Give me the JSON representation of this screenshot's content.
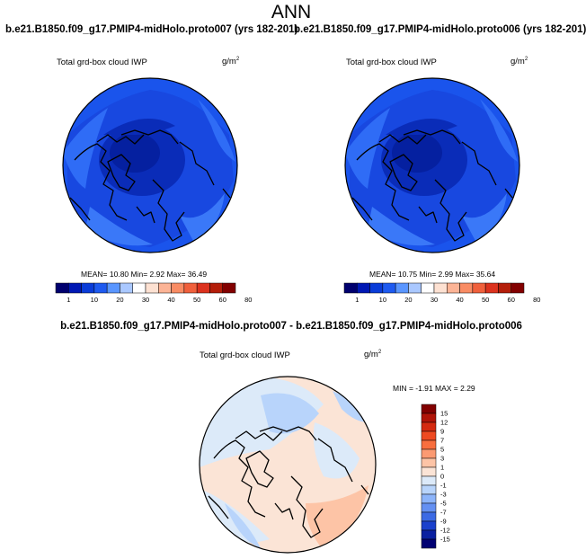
{
  "page_title": "ANN",
  "panels": [
    {
      "case_title": "b.e21.B1850.f09_g17.PMIP4-midHolo.proto007 (yrs 182-201)",
      "variable_label": "Total grd-box cloud IWP",
      "units_base": "g/m",
      "units_exp": "2",
      "stats_text": "MEAN=  10.80  Min=    2.92  Max=   36.49"
    },
    {
      "case_title": "b.e21.B1850.f09_g17.PMIP4-midHolo.proto006 (yrs 182-201)",
      "variable_label": "Total grd-box cloud IWP",
      "units_base": "g/m",
      "units_exp": "2",
      "stats_text": "MEAN=  10.75  Min=    2.99  Max=   35.64"
    }
  ],
  "difference_panel": {
    "title": "b.e21.B1850.f09_g17.PMIP4-midHolo.proto007 - b.e21.B1850.f09_g17.PMIP4-midHolo.proto006",
    "variable_label": "Total grd-box cloud IWP",
    "units_base": "g/m",
    "units_exp": "2",
    "stats_text": "MIN =  -1.91  MAX =   2.29"
  },
  "chart_data": [
    {
      "type": "heatmap",
      "projection": "north polar stereographic",
      "colorbar": {
        "orientation": "horizontal",
        "labels": [
          "1",
          "10",
          "20",
          "30",
          "40",
          "50",
          "60",
          "80"
        ],
        "colors": [
          "#00006e",
          "#0018b4",
          "#0a3cd8",
          "#1e5af0",
          "#5a96ff",
          "#aac8ff",
          "#ffffff",
          "#fde1d2",
          "#fcb496",
          "#f98c64",
          "#f0603c",
          "#dc321e",
          "#b41e0a",
          "#820000"
        ]
      },
      "stats": {
        "mean": 10.8,
        "min": 2.92,
        "max": 36.49
      }
    },
    {
      "type": "heatmap",
      "projection": "north polar stereographic",
      "colorbar": {
        "orientation": "horizontal",
        "labels": [
          "1",
          "10",
          "20",
          "30",
          "40",
          "50",
          "60",
          "80"
        ],
        "colors": [
          "#00006e",
          "#0018b4",
          "#0a3cd8",
          "#1e5af0",
          "#5a96ff",
          "#aac8ff",
          "#ffffff",
          "#fde1d2",
          "#fcb496",
          "#f98c64",
          "#f0603c",
          "#dc321e",
          "#b41e0a",
          "#820000"
        ]
      },
      "stats": {
        "mean": 10.75,
        "min": 2.99,
        "max": 35.64
      }
    },
    {
      "type": "heatmap",
      "projection": "north polar stereographic",
      "colorbar": {
        "orientation": "vertical",
        "labels": [
          "15",
          "12",
          "9",
          "7",
          "5",
          "3",
          "1",
          "0",
          "-1",
          "-3",
          "-5",
          "-7",
          "-9",
          "-12",
          "-15"
        ],
        "colors": [
          "#820000",
          "#b01408",
          "#d42a10",
          "#ee4a22",
          "#f86e3e",
          "#fb9a72",
          "#fdc4a6",
          "#fbe4d6",
          "#dceaf9",
          "#b8d4fb",
          "#8cb4fa",
          "#6490f2",
          "#3c6ae4",
          "#1a40cc",
          "#0a20a0",
          "#000072"
        ]
      },
      "stats": {
        "min": -1.91,
        "max": 2.29
      }
    }
  ]
}
